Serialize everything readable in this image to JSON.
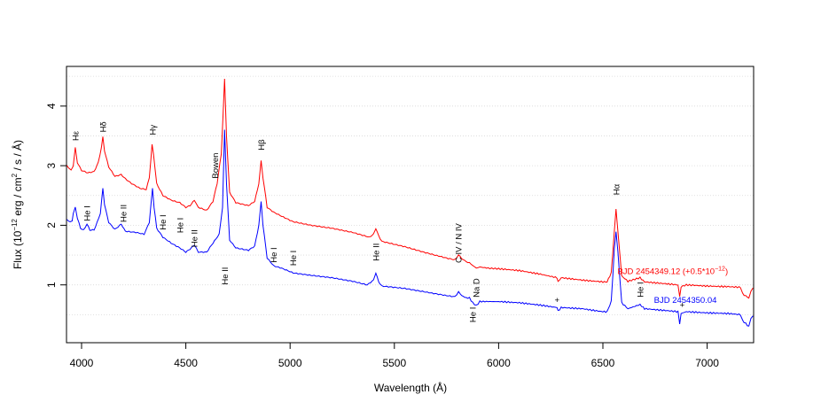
{
  "chart_data": {
    "type": "line",
    "title": "",
    "xlabel": "Wavelength (Å)",
    "ylabel": "Flux (10^-12 erg / cm^2 / s / Å)",
    "xlim": [
      3930,
      7220
    ],
    "ylim": [
      0.03,
      4.67
    ],
    "x_ticks": [
      4000,
      4500,
      5000,
      5500,
      6000,
      6500,
      7000
    ],
    "y_ticks": [
      1,
      2,
      3,
      4
    ],
    "grid": {
      "horizontal_dotted": true,
      "step": 0.5
    },
    "series": [
      {
        "name": "BJD 2454349.12 (+0.5*10^-12)",
        "color": "#ff0000",
        "points": [
          [
            3930,
            3.0
          ],
          [
            3950,
            2.92
          ],
          [
            3960,
            3.0
          ],
          [
            3970,
            3.3
          ],
          [
            3980,
            3.05
          ],
          [
            4000,
            2.92
          ],
          [
            4030,
            2.88
          ],
          [
            4060,
            2.9
          ],
          [
            4080,
            3.05
          ],
          [
            4095,
            3.3
          ],
          [
            4102,
            3.48
          ],
          [
            4110,
            3.25
          ],
          [
            4130,
            2.98
          ],
          [
            4160,
            2.82
          ],
          [
            4190,
            2.85
          ],
          [
            4210,
            2.78
          ],
          [
            4240,
            2.7
          ],
          [
            4280,
            2.62
          ],
          [
            4310,
            2.6
          ],
          [
            4325,
            2.8
          ],
          [
            4338,
            3.35
          ],
          [
            4345,
            3.2
          ],
          [
            4360,
            2.7
          ],
          [
            4390,
            2.5
          ],
          [
            4430,
            2.42
          ],
          [
            4471,
            2.38
          ],
          [
            4500,
            2.3
          ],
          [
            4520,
            2.33
          ],
          [
            4541,
            2.42
          ],
          [
            4560,
            2.3
          ],
          [
            4600,
            2.25
          ],
          [
            4630,
            2.4
          ],
          [
            4650,
            2.7
          ],
          [
            4670,
            3.2
          ],
          [
            4686,
            4.45
          ],
          [
            4695,
            3.5
          ],
          [
            4710,
            2.55
          ],
          [
            4740,
            2.38
          ],
          [
            4800,
            2.33
          ],
          [
            4830,
            2.4
          ],
          [
            4850,
            2.7
          ],
          [
            4861,
            3.08
          ],
          [
            4870,
            2.8
          ],
          [
            4890,
            2.3
          ],
          [
            4921,
            2.22
          ],
          [
            4960,
            2.15
          ],
          [
            5015,
            2.06
          ],
          [
            5100,
            2.0
          ],
          [
            5200,
            1.95
          ],
          [
            5300,
            1.88
          ],
          [
            5380,
            1.8
          ],
          [
            5400,
            1.85
          ],
          [
            5411,
            1.95
          ],
          [
            5425,
            1.82
          ],
          [
            5440,
            1.73
          ],
          [
            5550,
            1.64
          ],
          [
            5650,
            1.54
          ],
          [
            5750,
            1.45
          ],
          [
            5790,
            1.42
          ],
          [
            5808,
            1.5
          ],
          [
            5830,
            1.42
          ],
          [
            5860,
            1.37
          ],
          [
            5875,
            1.33
          ],
          [
            5893,
            1.28
          ],
          [
            5910,
            1.3
          ],
          [
            5950,
            1.28
          ],
          [
            6000,
            1.27
          ],
          [
            6100,
            1.24
          ],
          [
            6200,
            1.18
          ],
          [
            6280,
            1.12
          ],
          [
            6285,
            1.05
          ],
          [
            6300,
            1.12
          ],
          [
            6400,
            1.08
          ],
          [
            6500,
            1.05
          ],
          [
            6520,
            1.05
          ],
          [
            6540,
            1.2
          ],
          [
            6555,
            1.9
          ],
          [
            6563,
            2.27
          ],
          [
            6572,
            1.9
          ],
          [
            6590,
            1.15
          ],
          [
            6620,
            1.06
          ],
          [
            6678,
            1.12
          ],
          [
            6700,
            1.05
          ],
          [
            6800,
            1.02
          ],
          [
            6860,
            1.0
          ],
          [
            6868,
            0.8
          ],
          [
            6875,
            0.97
          ],
          [
            6900,
            1.0
          ],
          [
            7000,
            0.98
          ],
          [
            7100,
            0.97
          ],
          [
            7160,
            0.96
          ],
          [
            7170,
            0.85
          ],
          [
            7200,
            0.78
          ],
          [
            7210,
            0.9
          ],
          [
            7220,
            0.95
          ]
        ]
      },
      {
        "name": "BJD 2454350.04",
        "color": "#0000ff",
        "points": [
          [
            3930,
            2.1
          ],
          [
            3945,
            2.05
          ],
          [
            3955,
            2.08
          ],
          [
            3960,
            2.2
          ],
          [
            3970,
            2.3
          ],
          [
            3980,
            2.12
          ],
          [
            3995,
            1.95
          ],
          [
            4010,
            1.92
          ],
          [
            4026,
            2.02
          ],
          [
            4040,
            1.92
          ],
          [
            4060,
            1.92
          ],
          [
            4075,
            2.05
          ],
          [
            4090,
            2.2
          ],
          [
            4102,
            2.62
          ],
          [
            4110,
            2.35
          ],
          [
            4130,
            2.05
          ],
          [
            4160,
            1.93
          ],
          [
            4190,
            2.02
          ],
          [
            4210,
            1.9
          ],
          [
            4260,
            1.88
          ],
          [
            4300,
            1.85
          ],
          [
            4325,
            2.05
          ],
          [
            4340,
            2.62
          ],
          [
            4348,
            2.3
          ],
          [
            4360,
            1.95
          ],
          [
            4390,
            1.8
          ],
          [
            4430,
            1.7
          ],
          [
            4471,
            1.62
          ],
          [
            4500,
            1.55
          ],
          [
            4520,
            1.6
          ],
          [
            4541,
            1.67
          ],
          [
            4560,
            1.55
          ],
          [
            4600,
            1.55
          ],
          [
            4630,
            1.7
          ],
          [
            4660,
            1.85
          ],
          [
            4676,
            2.3
          ],
          [
            4686,
            3.6
          ],
          [
            4695,
            2.7
          ],
          [
            4710,
            1.75
          ],
          [
            4740,
            1.62
          ],
          [
            4800,
            1.58
          ],
          [
            4830,
            1.65
          ],
          [
            4850,
            2.0
          ],
          [
            4861,
            2.4
          ],
          [
            4870,
            2.0
          ],
          [
            4890,
            1.45
          ],
          [
            4921,
            1.32
          ],
          [
            4960,
            1.28
          ],
          [
            5015,
            1.2
          ],
          [
            5100,
            1.16
          ],
          [
            5200,
            1.12
          ],
          [
            5300,
            1.06
          ],
          [
            5370,
            1.0
          ],
          [
            5400,
            1.08
          ],
          [
            5411,
            1.2
          ],
          [
            5425,
            1.05
          ],
          [
            5440,
            0.98
          ],
          [
            5550,
            0.94
          ],
          [
            5650,
            0.88
          ],
          [
            5750,
            0.82
          ],
          [
            5790,
            0.8
          ],
          [
            5808,
            0.88
          ],
          [
            5830,
            0.8
          ],
          [
            5860,
            0.78
          ],
          [
            5876,
            0.7
          ],
          [
            5893,
            0.65
          ],
          [
            5910,
            0.72
          ],
          [
            5950,
            0.72
          ],
          [
            6000,
            0.72
          ],
          [
            6100,
            0.7
          ],
          [
            6200,
            0.66
          ],
          [
            6280,
            0.62
          ],
          [
            6285,
            0.56
          ],
          [
            6300,
            0.62
          ],
          [
            6400,
            0.6
          ],
          [
            6500,
            0.55
          ],
          [
            6520,
            0.55
          ],
          [
            6540,
            0.72
          ],
          [
            6555,
            1.6
          ],
          [
            6563,
            1.9
          ],
          [
            6572,
            1.55
          ],
          [
            6590,
            0.7
          ],
          [
            6620,
            0.6
          ],
          [
            6678,
            0.67
          ],
          [
            6700,
            0.6
          ],
          [
            6800,
            0.57
          ],
          [
            6860,
            0.55
          ],
          [
            6868,
            0.35
          ],
          [
            6875,
            0.52
          ],
          [
            6900,
            0.55
          ],
          [
            7000,
            0.53
          ],
          [
            7100,
            0.52
          ],
          [
            7160,
            0.5
          ],
          [
            7170,
            0.4
          ],
          [
            7200,
            0.3
          ],
          [
            7210,
            0.45
          ],
          [
            7220,
            0.48
          ]
        ]
      }
    ],
    "annotations": [
      {
        "text": "Hε",
        "wavelength": 3970,
        "flux": 3.5
      },
      {
        "text": "Hδ",
        "wavelength": 4102,
        "flux": 3.65
      },
      {
        "text": "Hγ",
        "wavelength": 4340,
        "flux": 3.6
      },
      {
        "text": "Bowen",
        "wavelength": 4640,
        "flux": 3.0
      },
      {
        "text": "Hβ",
        "wavelength": 4861,
        "flux": 3.35
      },
      {
        "text": "Hα",
        "wavelength": 6563,
        "flux": 2.6
      },
      {
        "text": "He I",
        "wavelength": 4026,
        "flux": 2.2
      },
      {
        "text": "He II",
        "wavelength": 4200,
        "flux": 2.2
      },
      {
        "text": "He I",
        "wavelength": 4388,
        "flux": 2.05
      },
      {
        "text": "He I",
        "wavelength": 4471,
        "flux": 2.0
      },
      {
        "text": "He II",
        "wavelength": 4541,
        "flux": 1.78
      },
      {
        "text": "He II",
        "wavelength": 4686,
        "flux": 1.15
      },
      {
        "text": "He I",
        "wavelength": 4921,
        "flux": 1.5
      },
      {
        "text": "He I",
        "wavelength": 5015,
        "flux": 1.45
      },
      {
        "text": "He II",
        "wavelength": 5411,
        "flux": 1.55
      },
      {
        "text": "C IV / N IV",
        "wavelength": 5808,
        "flux": 1.7
      },
      {
        "text": "Na D",
        "wavelength": 5893,
        "flux": 0.95
      },
      {
        "text": "He I",
        "wavelength": 5876,
        "flux": 0.5
      },
      {
        "text": "He I",
        "wavelength": 6678,
        "flux": 0.92
      },
      {
        "text": "+",
        "wavelength": 6280,
        "flux": 0.7
      },
      {
        "text": "+",
        "wavelength": 6880,
        "flux": 0.62
      }
    ],
    "legend": [
      {
        "text": "BJD 2454349.12 (+0.5*10",
        "sup": "−12",
        "close": ")",
        "color": "#ff0000",
        "wavelength": 6570,
        "flux": 1.18
      },
      {
        "text": "BJD 2454350.04",
        "color": "#0000ff",
        "wavelength": 6745,
        "flux": 0.7
      }
    ]
  },
  "labels": {
    "xlabel": "Wavelength (Å)",
    "ylabel_pre": "Flux (10",
    "ylabel_sup1": "−12",
    "ylabel_mid": " erg / cm",
    "ylabel_sup2": "2",
    "ylabel_post": " / s / Å)"
  }
}
